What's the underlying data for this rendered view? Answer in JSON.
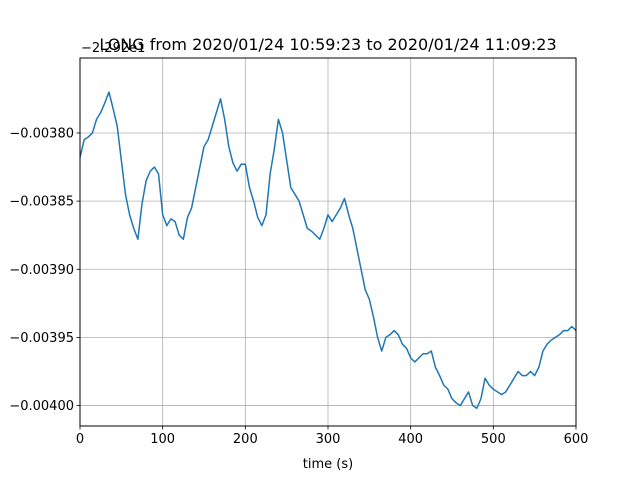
{
  "chart_data": {
    "type": "line",
    "title": "LONG from 2020/01/24 10:59:23 to 2020/01/24 11:09:23",
    "xlabel": "time (s)",
    "ylabel": "",
    "y_offset_text": "−2.292e1",
    "xlim": [
      0,
      600
    ],
    "ylim": [
      -0.004015,
      -0.003745
    ],
    "grid": true,
    "xticks": [
      0,
      100,
      200,
      300,
      400,
      500,
      600
    ],
    "xtick_labels": [
      "0",
      "100",
      "200",
      "300",
      "400",
      "500",
      "600"
    ],
    "yticks": [
      -0.004,
      -0.00395,
      -0.0039,
      -0.00385,
      -0.0038
    ],
    "ytick_labels": [
      "−0.00400",
      "−0.00395",
      "−0.00390",
      "−0.00385",
      "−0.00380"
    ],
    "color": "#1f77b4",
    "series": [
      {
        "x": [
          0,
          5,
          10,
          15,
          20,
          25,
          30,
          35,
          40,
          45,
          50,
          55,
          60,
          65,
          70,
          75,
          80,
          85,
          90,
          95,
          100,
          105,
          110,
          115,
          120,
          125,
          130,
          135,
          140,
          145,
          150,
          155,
          160,
          165,
          170,
          175,
          180,
          185,
          190,
          195,
          200,
          205,
          210,
          215,
          220,
          225,
          230,
          235,
          240,
          245,
          250,
          255,
          260,
          265,
          270,
          275,
          280,
          285,
          290,
          295,
          300,
          305,
          310,
          315,
          320,
          325,
          330,
          335,
          340,
          345,
          350,
          355,
          360,
          365,
          370,
          375,
          380,
          385,
          390,
          395,
          400,
          405,
          410,
          415,
          420,
          425,
          430,
          435,
          440,
          445,
          450,
          455,
          460,
          465,
          470,
          475,
          480,
          485,
          490,
          495,
          500,
          505,
          510,
          515,
          520,
          525,
          530,
          535,
          540,
          545,
          550,
          555,
          560,
          565,
          570,
          575,
          580,
          585,
          590,
          595,
          600
        ],
        "y": [
          -0.003818,
          -0.003805,
          -0.003803,
          -0.0038,
          -0.00379,
          -0.003785,
          -0.003778,
          -0.00377,
          -0.003782,
          -0.003795,
          -0.00382,
          -0.003845,
          -0.00386,
          -0.00387,
          -0.003878,
          -0.003852,
          -0.003835,
          -0.003828,
          -0.003825,
          -0.00383,
          -0.00386,
          -0.003868,
          -0.003863,
          -0.003865,
          -0.003875,
          -0.003878,
          -0.003862,
          -0.003855,
          -0.00384,
          -0.003825,
          -0.00381,
          -0.003805,
          -0.003795,
          -0.003785,
          -0.003775,
          -0.00379,
          -0.00381,
          -0.003822,
          -0.003828,
          -0.003823,
          -0.003823,
          -0.00384,
          -0.00385,
          -0.003862,
          -0.003868,
          -0.00386,
          -0.00383,
          -0.003812,
          -0.00379,
          -0.0038,
          -0.00382,
          -0.00384,
          -0.003845,
          -0.00385,
          -0.00386,
          -0.00387,
          -0.003872,
          -0.003875,
          -0.003878,
          -0.00387,
          -0.00386,
          -0.003865,
          -0.00386,
          -0.003855,
          -0.003848,
          -0.00386,
          -0.00387,
          -0.003885,
          -0.0039,
          -0.003915,
          -0.003922,
          -0.003935,
          -0.00395,
          -0.00396,
          -0.00395,
          -0.003948,
          -0.003945,
          -0.003948,
          -0.003955,
          -0.003958,
          -0.003965,
          -0.003968,
          -0.003965,
          -0.003962,
          -0.003962,
          -0.00396,
          -0.003972,
          -0.003978,
          -0.003985,
          -0.003988,
          -0.003995,
          -0.003998,
          -0.004,
          -0.003995,
          -0.00399,
          -0.004,
          -0.004002,
          -0.003995,
          -0.00398,
          -0.003985,
          -0.003988,
          -0.00399,
          -0.003992,
          -0.00399,
          -0.003985,
          -0.00398,
          -0.003975,
          -0.003978,
          -0.003978,
          -0.003975,
          -0.003978,
          -0.003972,
          -0.00396,
          -0.003955,
          -0.003952,
          -0.00395,
          -0.003948,
          -0.003945,
          -0.003945,
          -0.003942,
          -0.003945
        ]
      }
    ]
  }
}
